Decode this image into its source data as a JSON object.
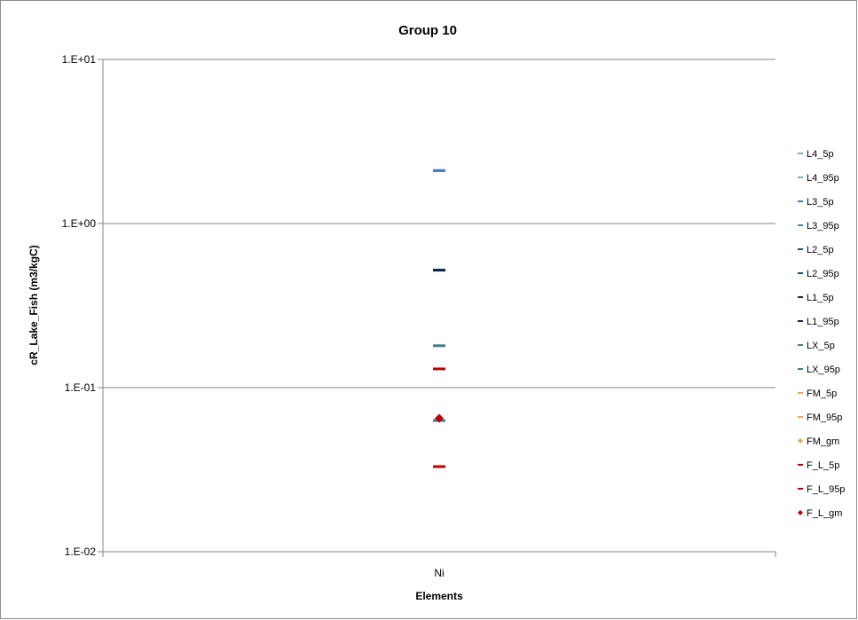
{
  "chart_data": {
    "type": "scatter",
    "title": "Group  10",
    "xlabel": "Elements",
    "ylabel": "cR_Lake_Fish (m3/kgC)",
    "categories": [
      "Ni"
    ],
    "y_scale": "log",
    "ylim": [
      0.01,
      10
    ],
    "y_ticks": [
      {
        "value": 10,
        "label": "1.E+01"
      },
      {
        "value": 1,
        "label": "1.E+00"
      },
      {
        "value": 0.1,
        "label": "1.E-01"
      },
      {
        "value": 0.01,
        "label": "1.E-02"
      }
    ],
    "grid": true,
    "legend_position": "right",
    "series": [
      {
        "name": "L4_5p",
        "marker": "dash",
        "color": "#7aa8d4",
        "values": [
          2.1
        ]
      },
      {
        "name": "L4_95p",
        "marker": "dash",
        "color": "#7aa8d4",
        "values": [
          2.1
        ]
      },
      {
        "name": "L3_5p",
        "marker": "dash",
        "color": "#4a7ebb",
        "values": [
          2.1
        ]
      },
      {
        "name": "L3_95p",
        "marker": "dash",
        "color": "#4a7ebb",
        "values": [
          2.1
        ]
      },
      {
        "name": "L2_5p",
        "marker": "dash",
        "color": "#1f4e79",
        "values": [
          0.52
        ]
      },
      {
        "name": "L2_95p",
        "marker": "dash",
        "color": "#1f4e79",
        "values": [
          0.52
        ]
      },
      {
        "name": "L1_5p",
        "marker": "dash",
        "color": "#0d2b4a",
        "values": [
          0.52
        ]
      },
      {
        "name": "L1_95p",
        "marker": "dash",
        "color": "#0d2b4a",
        "values": [
          0.52
        ]
      },
      {
        "name": "LX_5p",
        "marker": "dash",
        "color": "#3f7f87",
        "values": [
          0.18
        ]
      },
      {
        "name": "LX_95p",
        "marker": "dash",
        "color": "#3f7f87",
        "values": [
          0.063
        ]
      },
      {
        "name": "FM_5p",
        "marker": "dash",
        "color": "#f0a25c",
        "values": [
          null
        ]
      },
      {
        "name": "FM_95p",
        "marker": "dash",
        "color": "#f0a25c",
        "values": [
          null
        ]
      },
      {
        "name": "FM_gm",
        "marker": "diamond",
        "color": "#f0a25c",
        "values": [
          null
        ]
      },
      {
        "name": "F_L_5p",
        "marker": "dash",
        "color": "#c00000",
        "values": [
          0.033
        ]
      },
      {
        "name": "F_L_95p",
        "marker": "dash",
        "color": "#c00000",
        "values": [
          0.13
        ]
      },
      {
        "name": "F_L_gm",
        "marker": "diamond",
        "color": "#c00000",
        "values": [
          0.065
        ]
      }
    ]
  }
}
